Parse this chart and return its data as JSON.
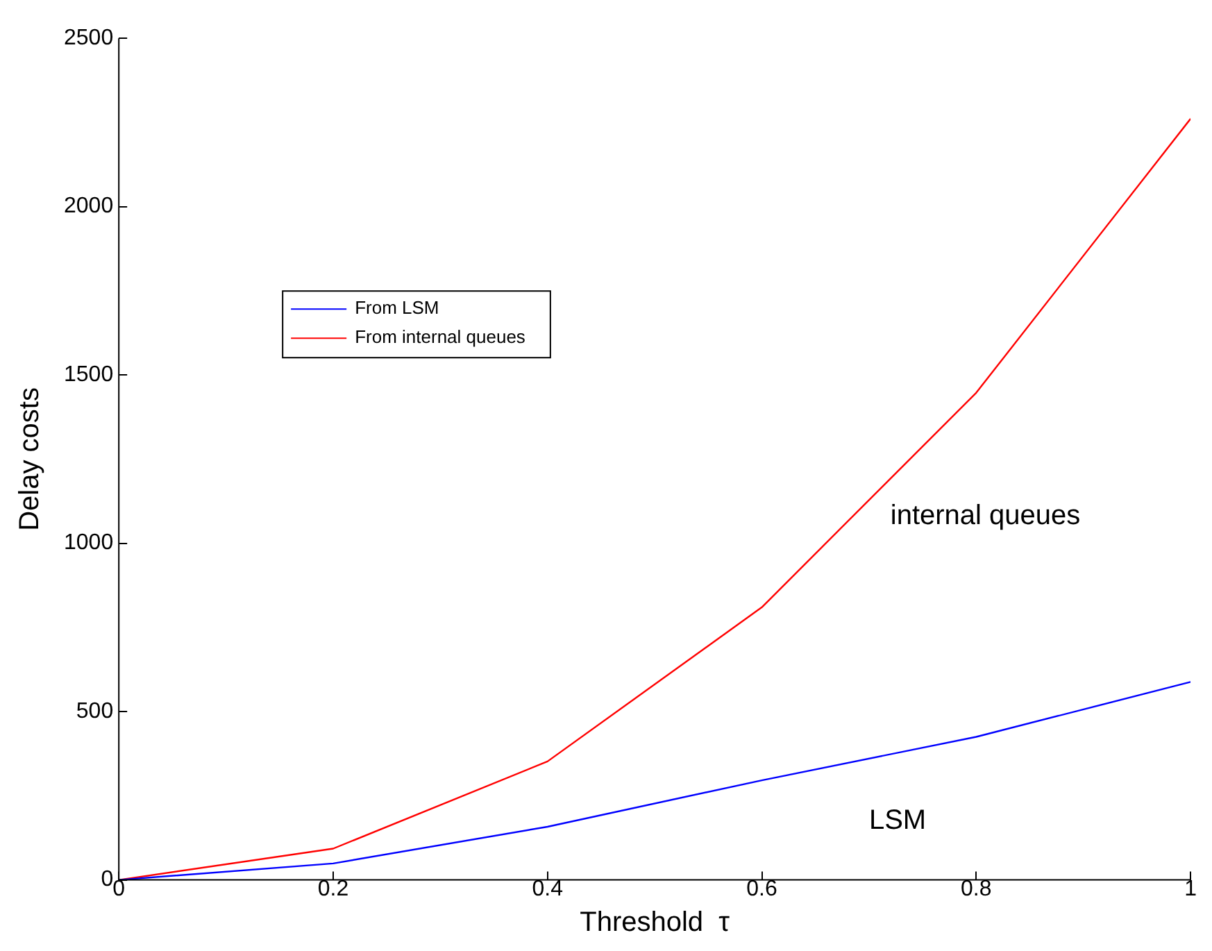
{
  "chart_data": {
    "type": "line",
    "xlabel": "Threshold  τ",
    "ylabel": "Delay costs",
    "x": [
      0,
      0.2,
      0.4,
      0.6,
      0.8,
      1
    ],
    "series": [
      {
        "name": "From LSM",
        "color": "#0000ff",
        "values": [
          0,
          49,
          158,
          296,
          425,
          588
        ]
      },
      {
        "name": "From internal queues",
        "color": "#ff0000",
        "values": [
          0,
          93,
          352,
          810,
          1447,
          2261
        ]
      }
    ],
    "xlim": [
      0,
      1
    ],
    "xticks": [
      0,
      0.2,
      0.4,
      0.6,
      0.8,
      1
    ],
    "ylim": [
      0,
      2500
    ],
    "yticks": [
      0,
      500,
      1000,
      1500,
      2000,
      2500
    ],
    "grid": false,
    "legend": "top left",
    "marker": "none",
    "line_style": "solid",
    "annotations": [
      "internal queues",
      "LSM"
    ]
  }
}
